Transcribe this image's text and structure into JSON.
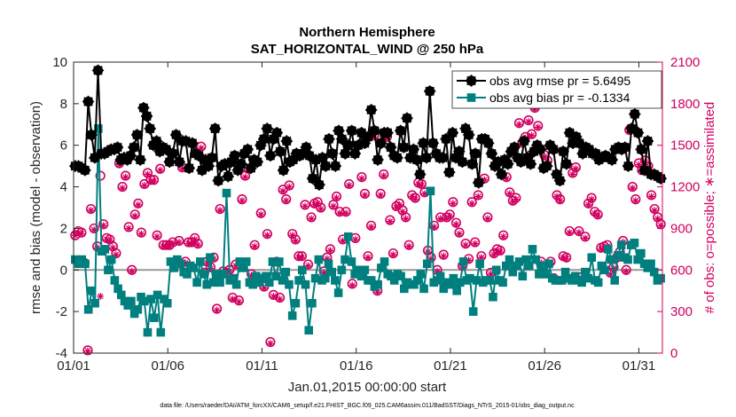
{
  "chart_data": {
    "type": "line",
    "title": "Northern Hemisphere",
    "subtitle": "SAT_HORIZONTAL_WIND @ 250 hPa",
    "xlabel": "Jan.01,2015 00:00:00 start",
    "ylabel": "rmse and bias (model - observation)",
    "y2label": "# of obs: o=possible; ∗=assimilated",
    "footnote": "data file: /Users/raeder/DAI/ATM_forcXX/CAM6_setup/f.e21.FHIST_BGC.f09_025.CAM6assim.011/BadSST/Diags_NTrS_2015-01/obs_diag_output.nc",
    "x_ticks": [
      {
        "label": "01/01",
        "day": 1
      },
      {
        "label": "01/06",
        "day": 6
      },
      {
        "label": "01/11",
        "day": 11
      },
      {
        "label": "01/16",
        "day": 16
      },
      {
        "label": "01/21",
        "day": 21
      },
      {
        "label": "01/26",
        "day": 26
      },
      {
        "label": "01/31",
        "day": 31
      }
    ],
    "xlim_days": [
      1,
      32.25
    ],
    "ylim": [
      -4,
      10
    ],
    "y_ticks": [
      -4,
      -2,
      0,
      2,
      4,
      6,
      8,
      10
    ],
    "y_tick_labels": [
      "-4",
      "-2",
      "0",
      "2",
      "4",
      "6",
      "8",
      "10"
    ],
    "y2lim": [
      0,
      2100
    ],
    "y2_ticks": [
      0,
      300,
      600,
      900,
      1200,
      1500,
      1800,
      2100
    ],
    "y2_tick_labels": [
      "0",
      "300",
      "600",
      "900",
      "1200",
      "1500",
      "1800",
      "2100"
    ],
    "legend_position": "top-right",
    "zero_line": 0,
    "colors": {
      "rmse": "#000000",
      "bias": "#007f7f",
      "obs": "#d1005f",
      "zero": "#999999"
    },
    "series": [
      {
        "name": "obs avg rmse pr = 5.6495",
        "marker": "star-circle",
        "values": [
          5.0,
          5.0,
          4.9,
          4.8,
          8.1,
          6.5,
          5.4,
          9.6,
          5.6,
          5.6,
          5.7,
          5.8,
          5.8,
          5.9,
          5.3,
          5.4,
          5.3,
          5.5,
          5.9,
          6.5,
          5.3,
          7.8,
          7.4,
          6.8,
          6.0,
          6.2,
          5.7,
          5.9,
          5.8,
          5.2,
          5.6,
          6.5,
          5.2,
          6.2,
          6.2,
          4.9,
          6.1,
          5.6,
          5.5,
          4.8,
          5.3,
          5.0,
          5.4,
          6.8,
          4.3,
          5.0,
          5.1,
          4.5,
          5.2,
          5.5,
          4.8,
          5.1,
          5.6,
          5.8,
          4.9,
          5.3,
          5.2,
          6.0,
          6.3,
          6.8,
          5.5,
          6.3,
          6.6,
          5.7,
          4.8,
          6.2,
          5.2,
          5.3,
          5.6,
          5.5,
          5.6,
          5.9,
          5.5,
          4.4,
          5.3,
          4.1,
          5.4,
          5.0,
          6.3,
          5.6,
          5.0,
          6.7,
          6.3,
          5.6,
          6.0,
          6.7,
          5.6,
          6.0,
          6.6,
          6.1,
          6.4,
          7.7,
          6.7,
          5.3,
          6.1,
          6.6,
          6.6,
          5.9,
          5.5,
          5.4,
          6.7,
          5.9,
          7.3,
          5.4,
          5.8,
          5.3,
          4.6,
          6.1,
          5.4,
          8.6,
          6.1,
          5.6,
          5.4,
          5.4,
          6.3,
          4.7,
          6.6,
          5.4,
          5.7,
          5.2,
          6.8,
          6.5,
          5.1,
          5.6,
          4.2,
          6.3,
          6.3,
          6.1,
          5.6,
          5.0,
          5.2,
          4.6,
          5.3,
          5.1,
          5.7,
          5.9,
          5.4,
          5.2,
          6.2,
          5.4,
          5.1,
          5.7,
          6.0,
          5.8,
          4.9,
          5.0,
          6.0,
          5.8,
          4.6,
          4.3,
          5.7,
          5.1,
          6.6,
          6.1,
          6.4,
          6.1,
          5.6,
          5.9,
          5.8,
          5.6,
          5.6,
          5.3,
          5.4,
          5.5,
          5.4,
          5.3,
          5.8,
          5.9,
          5.8,
          5.9,
          5.0,
          6.8,
          7.5,
          6.6,
          5.8,
          4.8,
          6.2,
          4.6,
          4.6,
          4.5,
          4.4
        ]
      },
      {
        "name": "obs avg bias pr = -0.1334",
        "marker": "square",
        "values": [
          0.5,
          0.3,
          0.5,
          0.3,
          -1.9,
          -1.0,
          -1.6,
          6.8,
          0.9,
          1.0,
          0.0,
          0.5,
          -0.5,
          -0.9,
          -1.2,
          -1.5,
          -1.7,
          -1.5,
          -2.1,
          -1.9,
          -1.3,
          -1.5,
          -3.0,
          -1.4,
          -2.3,
          -1.2,
          -3.0,
          -1.4,
          -1.6,
          0.4,
          0.1,
          0.5,
          0.3,
          -0.1,
          -0.2,
          0.2,
          0.1,
          -0.6,
          0.4,
          -0.2,
          -0.7,
          0.6,
          -0.6,
          -0.2,
          -0.6,
          -0.2,
          3.7,
          -0.5,
          -0.4,
          -0.7,
          0.4,
          0.1,
          0.4,
          -0.6,
          -0.7,
          -0.3,
          -0.6,
          -0.4,
          -0.3,
          -0.6,
          0.4,
          -0.3,
          0.4,
          -0.5,
          -0.1,
          -0.7,
          -2.2,
          -1.6,
          -0.5,
          0.0,
          -0.7,
          -2.9,
          -1.6,
          -0.4,
          0.5,
          -0.5,
          -0.4,
          0.3,
          -0.1,
          -0.5,
          -1.1,
          0.0,
          0.5,
          1.6,
          0.4,
          -0.2,
          0.0,
          -0.3,
          0.0,
          -0.5,
          -0.5,
          -0.8,
          -0.7,
          0.1,
          0.4,
          -0.2,
          -0.3,
          -0.5,
          -0.2,
          -0.3,
          -0.9,
          -0.6,
          -0.7,
          -0.7,
          -0.5,
          -0.2,
          -0.9,
          0.3,
          3.8,
          -0.6,
          -0.5,
          -0.3,
          -0.9,
          -0.6,
          -0.7,
          -0.4,
          -1.0,
          -0.6,
          0.4,
          -0.5,
          -0.4,
          -2.0,
          -0.5,
          0.3,
          -0.6,
          -0.5,
          -0.5,
          -1.3,
          0.0,
          -0.5,
          -0.6,
          0.2,
          0.5,
          -0.1,
          0.2,
          0.4,
          -0.3,
          0.5,
          0.2,
          1.0,
          0.5,
          -0.2,
          0.2,
          -0.2,
          0.3,
          -0.4,
          -0.5,
          -0.5,
          -0.5,
          -0.1,
          -0.4,
          -0.5,
          -0.3,
          -0.5,
          -0.6,
          -0.1,
          -0.4,
          0.6,
          -0.5,
          -0.6,
          0.2,
          0.0,
          1.0,
          0.5,
          -0.5,
          0.7,
          1.2,
          0.6,
          0.5,
          1.2,
          1.3,
          0.5,
          0.8,
          0.3,
          0.1,
          0.3,
          -0.1,
          -0.5,
          -0.4
        ]
      },
      {
        "name": "possible",
        "axis": "right",
        "marker": "circle",
        "values": [
          850,
          880,
          870,
          650,
          20,
          1040,
          900,
          770,
          1280,
          930,
          830,
          820,
          770,
          720,
          1370,
          1200,
          1280,
          910,
          600,
          1000,
          1080,
          870,
          1220,
          1300,
          1250,
          1250,
          850,
          1330,
          780,
          780,
          780,
          800,
          640,
          810,
          1340,
          660,
          800,
          800,
          830,
          790,
          1490,
          580,
          660,
          620,
          690,
          320,
          1040,
          590,
          580,
          600,
          400,
          640,
          380,
          1110,
          1280,
          1330,
          570,
          780,
          520,
          1010,
          480,
          860,
          80,
          420,
          660,
          400,
          1180,
          1110,
          1210,
          860,
          820,
          700,
          700,
          1070,
          640,
          980,
          1080,
          1090,
          1050,
          590,
          690,
          750,
          1070,
          1130,
          1020,
          820,
          1020,
          1220,
          500,
          830,
          590,
          1270,
          1150,
          700,
          920,
          1570,
          450,
          1150,
          1290,
          1560,
          960,
          720,
          1060,
          1080,
          1030,
          980,
          780,
          1140,
          1120,
          1230,
          1220,
          1160,
          740,
          690,
          920,
          600,
          980,
          710,
          980,
          1000,
          1090,
          940,
          870,
          630,
          790,
          680,
          1090,
          800,
          1140,
          700,
          1260,
          980,
          580,
          720,
          750,
          740,
          850,
          1270,
          1160,
          1100,
          1120,
          1660,
          1520,
          1560,
          1680,
          1580,
          1770,
          1640,
          660,
          1430,
          1390,
          660,
          540,
          1140,
          1110,
          700,
          690,
          880,
          1300,
          1340,
          880,
          550,
          840,
          1080,
          1120,
          1020,
          1000,
          760,
          770,
          780,
          580,
          620,
          690,
          730,
          810,
          600,
          1610,
          1200,
          1110,
          1370,
          1320,
          1390,
          1350,
          1140,
          1040,
          980,
          930
        ]
      },
      {
        "name": "assimilated",
        "axis": "right",
        "marker": "star",
        "values": [
          850,
          870,
          860,
          640,
          15,
          1030,
          890,
          760,
          410,
          920,
          820,
          810,
          760,
          710,
          1360,
          1190,
          1270,
          900,
          590,
          990,
          1070,
          860,
          1210,
          1290,
          1240,
          1240,
          840,
          1320,
          770,
          770,
          770,
          790,
          630,
          800,
          1330,
          650,
          790,
          790,
          820,
          780,
          1480,
          570,
          650,
          610,
          680,
          310,
          1030,
          580,
          570,
          590,
          390,
          630,
          370,
          1100,
          1270,
          1320,
          560,
          770,
          510,
          1000,
          470,
          850,
          70,
          410,
          650,
          390,
          1170,
          1100,
          1200,
          850,
          810,
          690,
          690,
          1060,
          630,
          970,
          1070,
          1080,
          1040,
          580,
          680,
          740,
          1060,
          1120,
          1010,
          810,
          1010,
          1210,
          490,
          820,
          580,
          1260,
          1140,
          690,
          910,
          1560,
          440,
          1140,
          1280,
          1550,
          950,
          710,
          1050,
          1070,
          1020,
          970,
          770,
          1130,
          1110,
          1220,
          1210,
          1150,
          730,
          680,
          910,
          590,
          970,
          700,
          970,
          990,
          1080,
          930,
          860,
          620,
          780,
          670,
          1080,
          790,
          1130,
          690,
          1250,
          970,
          570,
          710,
          740,
          730,
          840,
          1260,
          1150,
          1090,
          1110,
          1650,
          1510,
          1550,
          1670,
          1570,
          1760,
          1630,
          650,
          1420,
          1380,
          650,
          530,
          1130,
          1100,
          690,
          680,
          870,
          1290,
          1330,
          870,
          540,
          830,
          1070,
          1110,
          1010,
          990,
          750,
          760,
          770,
          570,
          610,
          680,
          720,
          800,
          590,
          1600,
          1190,
          1100,
          1360,
          1310,
          1380,
          1340,
          1130,
          1030,
          970,
          920
        ]
      }
    ]
  }
}
